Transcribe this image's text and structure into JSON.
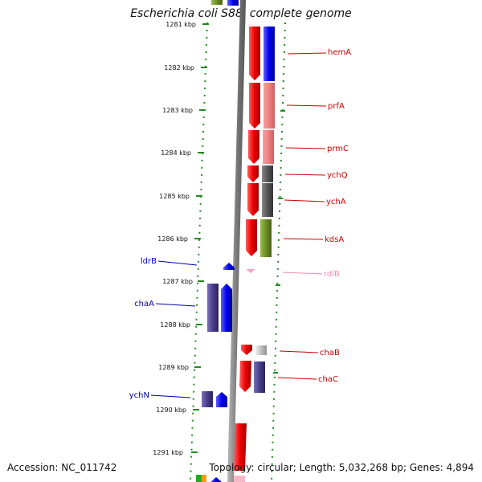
{
  "title": "Escherichia coli S88, complete genome",
  "footer": {
    "accession": "Accession: NC_011742",
    "summary": "Topology: circular; Length: 5,032,268 bp; Genes: 4,894"
  },
  "coordinate_labels": [
    "1281 kbp",
    "1282 kbp",
    "1283 kbp",
    "1284 kbp",
    "1285 kbp",
    "1286 kbp",
    "1287 kbp",
    "1288 kbp",
    "1289 kbp",
    "1290 kbp",
    "1291 kbp"
  ],
  "right_gene_labels": [
    {
      "name": "hemA",
      "color": "#cc0000"
    },
    {
      "name": "prfA",
      "color": "#cc0000"
    },
    {
      "name": "prmC",
      "color": "#cc0000"
    },
    {
      "name": "ychQ",
      "color": "#cc0000"
    },
    {
      "name": "ychA",
      "color": "#cc0000"
    },
    {
      "name": "kdsA",
      "color": "#cc0000"
    },
    {
      "name": "rdlB",
      "color": "#f08cb4"
    },
    {
      "name": "chaB",
      "color": "#cc0000"
    },
    {
      "name": "chaC",
      "color": "#cc0000"
    }
  ],
  "left_gene_labels": [
    {
      "name": "ldrB",
      "color": "#0000aa"
    },
    {
      "name": "chaA",
      "color": "#0000aa"
    },
    {
      "name": "ychN",
      "color": "#0000aa"
    }
  ],
  "colors": {
    "forward_strand": "#ee0000",
    "reverse_strand": "#0000ff",
    "cog_blue": "#0000ee",
    "cog_pink": "#f08080",
    "cog_gray": "#555555",
    "cog_olive": "#6b8e23",
    "cog_purple": "#483d8b",
    "cog_light_gray": "#c0c0c0",
    "rna_pink": "#f4a6c8",
    "backbone": "#8a8a8a",
    "tick": "#228b22"
  }
}
